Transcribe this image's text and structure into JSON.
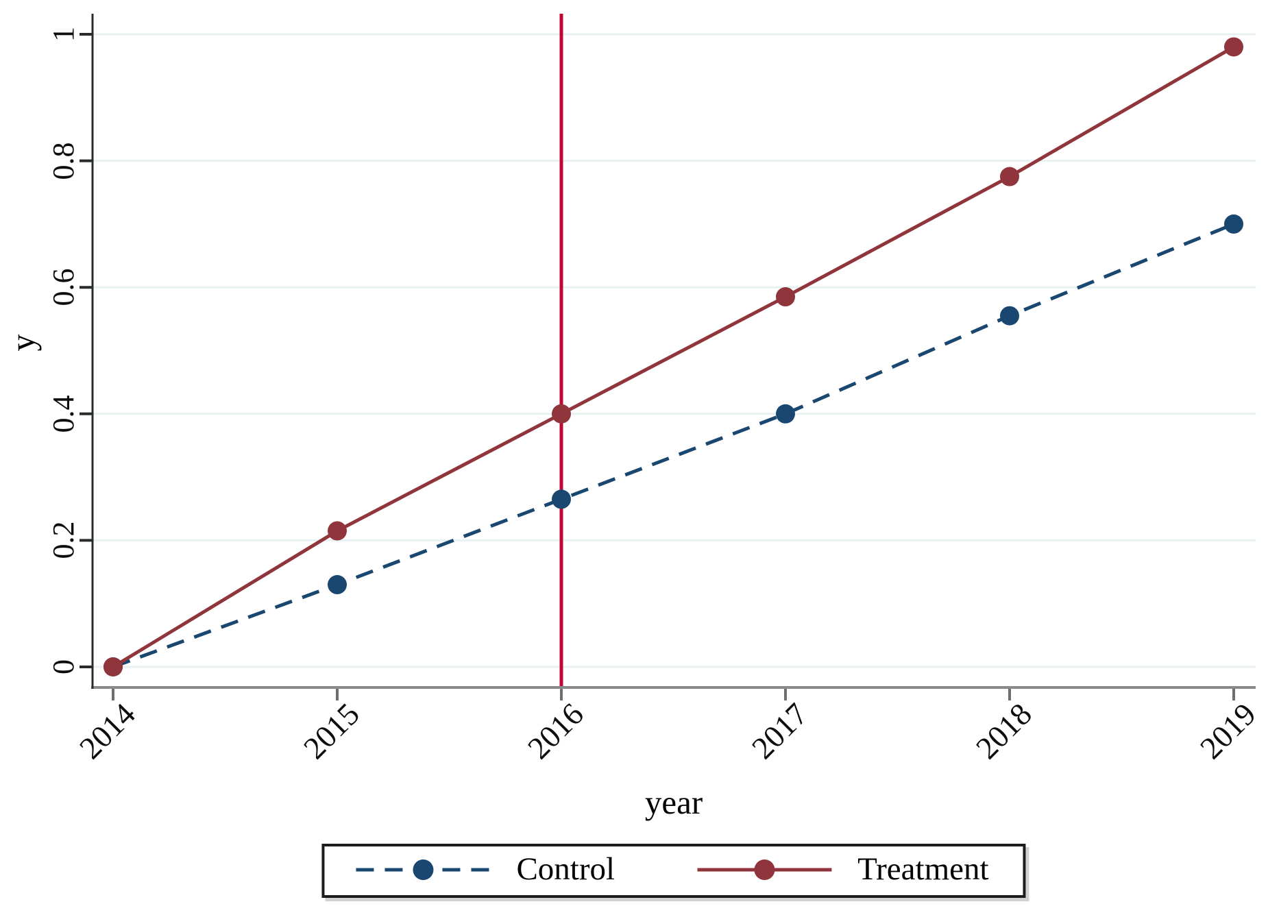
{
  "chart_data": {
    "type": "line",
    "title": "",
    "xlabel": "year",
    "ylabel": "y",
    "x": [
      2014,
      2015,
      2016,
      2017,
      2018,
      2019
    ],
    "x_tick_labels": [
      "2014",
      "2015",
      "2016",
      "2017",
      "2018",
      "2019"
    ],
    "yticks": [
      0,
      0.2,
      0.4,
      0.6,
      0.8,
      1
    ],
    "ytick_labels": [
      "0",
      "0.2",
      "0.4",
      "0.6",
      "0.8",
      "1"
    ],
    "ylim": [
      0,
      1
    ],
    "grid": true,
    "legend_position": "bottom",
    "series": [
      {
        "name": "Control",
        "style": "dashed",
        "color": "#1a476f",
        "values": [
          0,
          0.13,
          0.265,
          0.4,
          0.555,
          0.7
        ]
      },
      {
        "name": "Treatment",
        "style": "solid",
        "color": "#90353b",
        "values": [
          0,
          0.215,
          0.4,
          0.585,
          0.775,
          0.98
        ]
      }
    ],
    "vline": {
      "x": 2016,
      "color": "#c10534"
    },
    "colors": {
      "grid": "#e8f2f3",
      "x_axis": "#8a8a8a",
      "y_axis": "#2b2b2b",
      "y_tick": "#2b2b2b",
      "x_tick": "#6e6e6e",
      "background": "#ffffff"
    }
  }
}
